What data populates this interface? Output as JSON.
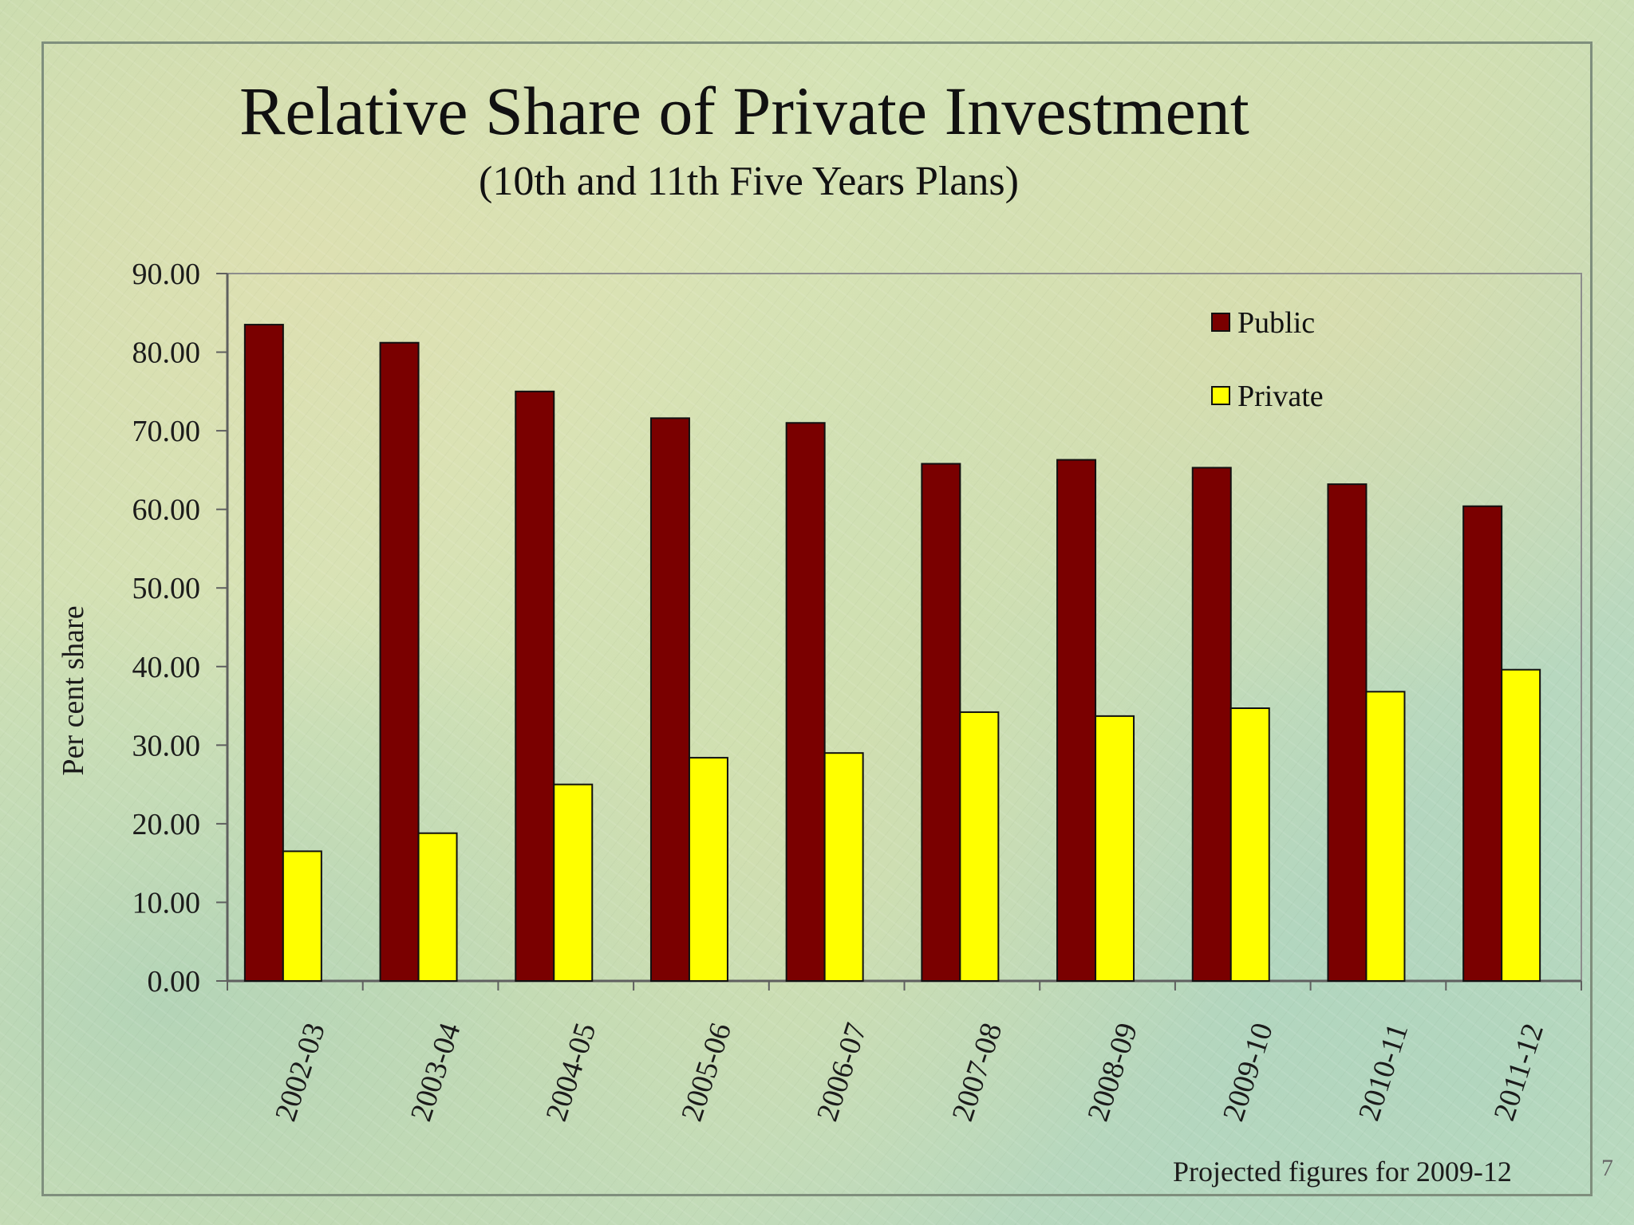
{
  "slide": {
    "footnote": "Projected figures for 2009-12",
    "page_number": "7"
  },
  "chart_data": {
    "type": "bar",
    "title": "Relative Share of Private Investment",
    "subtitle": "(10th and 11th Five Years Plans)",
    "xlabel": "",
    "ylabel": "Per cent share",
    "ylim": [
      0,
      90
    ],
    "y_ticks": [
      "0.00",
      "10.00",
      "20.00",
      "30.00",
      "40.00",
      "50.00",
      "60.00",
      "70.00",
      "80.00",
      "90.00"
    ],
    "y_tick_values": [
      0,
      10,
      20,
      30,
      40,
      50,
      60,
      70,
      80,
      90
    ],
    "grid": false,
    "legend": {
      "position": "top-right"
    },
    "categories": [
      "2002-03",
      "2003-04",
      "2004-05",
      "2005-06",
      "2006-07",
      "2007-08",
      "2008-09",
      "2009-10",
      "2010-11",
      "2011-12"
    ],
    "series": [
      {
        "name": "Public",
        "color": "#7a0000",
        "values": [
          83.5,
          81.2,
          75.0,
          71.6,
          71.0,
          65.8,
          66.3,
          65.3,
          63.2,
          60.4
        ]
      },
      {
        "name": "Private",
        "color": "#ffff00",
        "values": [
          16.5,
          18.8,
          25.0,
          28.4,
          29.0,
          34.2,
          33.7,
          34.7,
          36.8,
          39.6
        ]
      }
    ]
  }
}
